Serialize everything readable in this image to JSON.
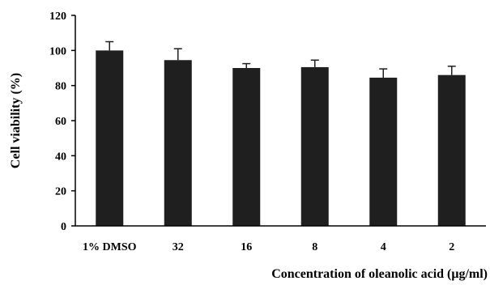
{
  "chart_data": {
    "type": "bar",
    "title": "",
    "xlabel": "Concentration of oleanolic acid (μg/ml)",
    "ylabel": "Cell viability (%)",
    "ylim": [
      0,
      120
    ],
    "yticks": [
      0,
      20,
      40,
      60,
      80,
      100,
      120
    ],
    "grid": false,
    "categories": [
      "1% DMSO",
      "32",
      "16",
      "8",
      "4",
      "2"
    ],
    "values": [
      100,
      94.5,
      90,
      90.5,
      84.5,
      86
    ],
    "errors": [
      5,
      6.5,
      2.5,
      4,
      5,
      5
    ],
    "bar_color": "#1f1f1f"
  }
}
